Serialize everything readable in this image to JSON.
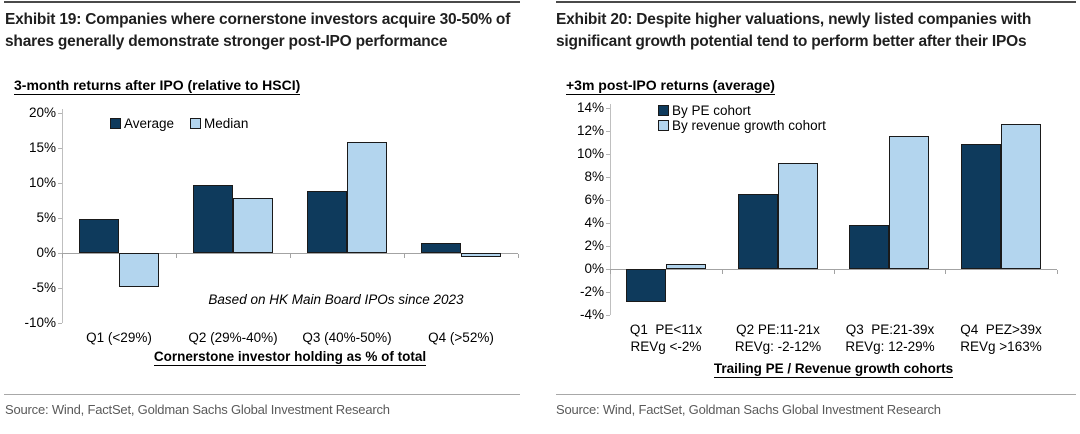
{
  "colors": {
    "bar_dark": "#0E3A5C",
    "bar_light": "#B3D5EE",
    "bar_border": "#1A1A1A",
    "axis_gray": "#BFBFBF",
    "source_text_gray": "#5A5A5A"
  },
  "chart_data": [
    {
      "type": "bar",
      "exhibit_title": "Exhibit 19: Companies where cornerstone investors acquire 30-50% of shares generally demonstrate stronger post-IPO performance",
      "subtitle": "3-month returns after IPO (relative to HSCI)",
      "categories": [
        "Q1 (<29%)",
        "Q2 (29%-40%)",
        "Q3 (40%-50%)",
        "Q4 (>52%)"
      ],
      "series": [
        {
          "name": "Average",
          "values": [
            4.8,
            9.7,
            8.8,
            1.4
          ],
          "color": "#0E3A5C"
        },
        {
          "name": "Median",
          "values": [
            -4.8,
            7.9,
            15.9,
            -0.5
          ],
          "color": "#B3D5EE"
        }
      ],
      "ylim": [
        -10,
        20
      ],
      "ytick_step": 5,
      "ytick_suffix": "%",
      "grid": false,
      "legend_position": "top-row",
      "annotation": "Based on HK Main Board IPOs since 2023",
      "xlabel": "Cornerstone investor holding as % of total",
      "source": "Source: Wind, FactSet, Goldman Sachs Global Investment Research"
    },
    {
      "type": "bar",
      "exhibit_title": "Exhibit 20: Despite higher valuations, newly listed companies with significant growth potential tend to perform better after their IPOs",
      "subtitle": "+3m post-IPO returns (average)",
      "categories": [
        [
          "Q1  PE<11x",
          "REVg <-2%"
        ],
        [
          "Q2 PE:11-21x",
          "REVg: -2-12%"
        ],
        [
          "Q3  PE:21-39x",
          "REVg: 12-29%"
        ],
        [
          "Q4  PEZ>39x",
          "REVg >163%"
        ]
      ],
      "series": [
        {
          "name": "By PE cohort",
          "values": [
            -2.9,
            6.5,
            3.8,
            10.9
          ],
          "color": "#0E3A5C"
        },
        {
          "name": "By revenue growth cohort",
          "values": [
            0.4,
            9.2,
            11.6,
            12.6
          ],
          "color": "#B3D5EE"
        }
      ],
      "ylim": [
        -4,
        14
      ],
      "ytick_step": 2,
      "ytick_suffix": "%",
      "grid": false,
      "legend_position": "top-column",
      "annotation": "",
      "xlabel": "Trailing PE / Revenue growth cohorts",
      "source": "Source: Wind, FactSet, Goldman Sachs Global Investment Research"
    }
  ]
}
